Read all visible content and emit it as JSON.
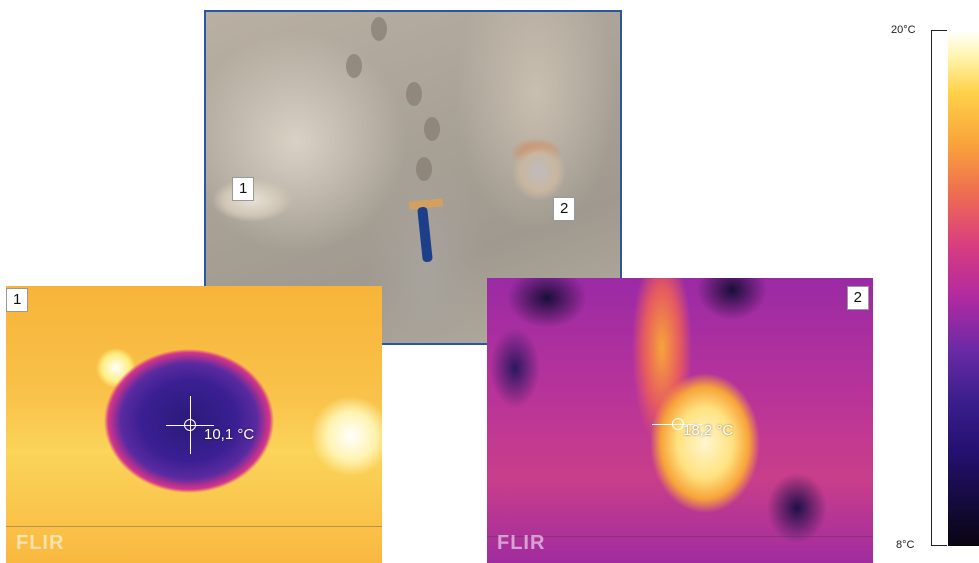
{
  "photo": {
    "label": "1",
    "label2": "2"
  },
  "thermal1": {
    "label": "1",
    "reading": "10,1 °C",
    "watermark": "FLIR"
  },
  "thermal2": {
    "label": "2",
    "reading": "18,2 °C",
    "watermark": "FLIR"
  },
  "scale": {
    "max": "20°C",
    "min": "8°C"
  },
  "colors": {
    "photo_border": "#2f55a0",
    "cold": "#2a1a7a",
    "warm": "#f9c24a",
    "hot": "#ffffff"
  }
}
